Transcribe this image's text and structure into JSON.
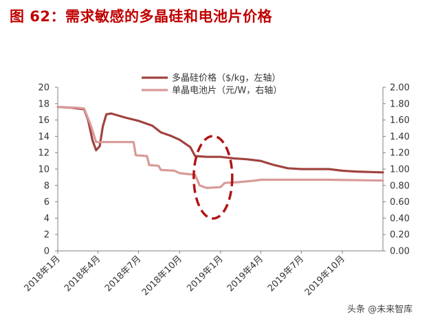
{
  "title": "图 62：需求敏感的多晶硅和电池片价格",
  "watermark": "头条 @未来智库",
  "colors": {
    "title": "#c00000",
    "poly": "#a0433f",
    "cell": "#d89a98",
    "ellipse": "#b01515",
    "axis": "#7f7f7f"
  },
  "chart_data": {
    "type": "line",
    "title": "图 62：需求敏感的多晶硅和电池片价格",
    "x_tick_labels": [
      "2018年1月",
      "2018年4月",
      "2018年7月",
      "2018年10月",
      "2019年1月",
      "2019年4月",
      "2019年7月",
      "2019年10月"
    ],
    "x_tick_labels_iso": [
      "2018-01-01",
      "2018-04-01",
      "2018-07-01",
      "2018-10-01",
      "2019-01-01",
      "2019-04-01",
      "2019-07-01",
      "2019-10-01"
    ],
    "x_range": [
      "2018-01-01",
      "2019-12-31"
    ],
    "y_left": {
      "min": 0,
      "max": 20,
      "ticks": [
        "0",
        "2",
        "4",
        "6",
        "8",
        "10",
        "12",
        "14",
        "16",
        "18",
        "20"
      ]
    },
    "y_right": {
      "min": 0,
      "max": 2,
      "ticks": [
        "0.00",
        "0.20",
        "0.40",
        "0.60",
        "0.80",
        "1.00",
        "1.20",
        "1.40",
        "1.60",
        "1.80",
        "2.00"
      ]
    },
    "legend_position": "top-right",
    "series": [
      {
        "name": "多晶硅价格（$/kg，左轴）",
        "axis": "left",
        "points": [
          [
            "2018-01-01",
            17.6
          ],
          [
            "2018-02-01",
            17.5
          ],
          [
            "2018-03-01",
            17.3
          ],
          [
            "2018-03-10",
            16.0
          ],
          [
            "2018-03-20",
            13.5
          ],
          [
            "2018-03-28",
            12.3
          ],
          [
            "2018-04-05",
            12.8
          ],
          [
            "2018-04-12",
            15.2
          ],
          [
            "2018-04-20",
            16.7
          ],
          [
            "2018-05-01",
            16.8
          ],
          [
            "2018-06-01",
            16.3
          ],
          [
            "2018-07-01",
            15.9
          ],
          [
            "2018-08-01",
            15.3
          ],
          [
            "2018-08-20",
            14.5
          ],
          [
            "2018-09-10",
            14.1
          ],
          [
            "2018-10-01",
            13.6
          ],
          [
            "2018-10-25",
            12.7
          ],
          [
            "2018-11-05",
            11.6
          ],
          [
            "2018-12-01",
            11.5
          ],
          [
            "2019-01-01",
            11.5
          ],
          [
            "2019-02-01",
            11.3
          ],
          [
            "2019-03-01",
            11.2
          ],
          [
            "2019-04-01",
            11.0
          ],
          [
            "2019-05-01",
            10.5
          ],
          [
            "2019-06-01",
            10.1
          ],
          [
            "2019-07-01",
            10.0
          ],
          [
            "2019-08-01",
            10.0
          ],
          [
            "2019-09-01",
            10.0
          ],
          [
            "2019-10-01",
            9.8
          ],
          [
            "2019-11-01",
            9.7
          ],
          [
            "2019-12-31",
            9.6
          ]
        ]
      },
      {
        "name": "单晶电池片（元/W，右轴）",
        "axis": "right",
        "points": [
          [
            "2018-01-01",
            1.76
          ],
          [
            "2018-02-15",
            1.75
          ],
          [
            "2018-03-01",
            1.74
          ],
          [
            "2018-03-15",
            1.55
          ],
          [
            "2018-03-28",
            1.33
          ],
          [
            "2018-05-01",
            1.33
          ],
          [
            "2018-06-20",
            1.33
          ],
          [
            "2018-06-25",
            1.17
          ],
          [
            "2018-07-20",
            1.16
          ],
          [
            "2018-07-25",
            1.05
          ],
          [
            "2018-08-15",
            1.04
          ],
          [
            "2018-08-20",
            0.99
          ],
          [
            "2018-09-20",
            0.98
          ],
          [
            "2018-10-01",
            0.95
          ],
          [
            "2018-11-05",
            0.93
          ],
          [
            "2018-11-15",
            0.8
          ],
          [
            "2018-12-01",
            0.77
          ],
          [
            "2019-01-01",
            0.78
          ],
          [
            "2019-01-10",
            0.83
          ],
          [
            "2019-02-10",
            0.84
          ],
          [
            "2019-03-20",
            0.86
          ],
          [
            "2019-04-01",
            0.87
          ],
          [
            "2019-06-01",
            0.87
          ],
          [
            "2019-09-01",
            0.87
          ],
          [
            "2019-12-31",
            0.86
          ]
        ]
      }
    ],
    "annotation": {
      "shape": "dashed-ellipse",
      "center_date": "2018-12-15",
      "center_value_left": 9.0
    }
  }
}
